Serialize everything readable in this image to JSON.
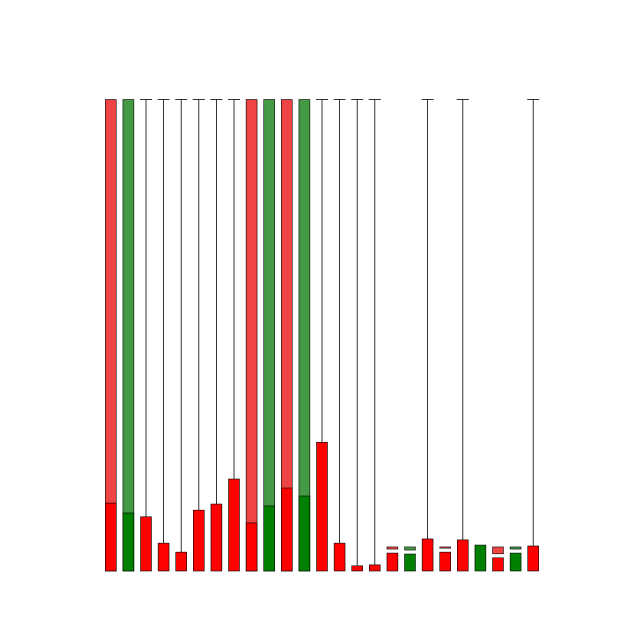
{
  "chart_data": {
    "type": "bar",
    "title": "",
    "xlabel": "",
    "ylabel": "",
    "ylim": [
      0,
      100
    ],
    "grid": false,
    "legend": "none",
    "colors": {
      "red_bar": "#ff0000",
      "green_bar": "#008000",
      "red_stick": "#ee4444",
      "green_stick": "#449944",
      "edge": "#000000"
    },
    "bars": [
      {
        "value": 14.4,
        "color": "red",
        "stick": "red",
        "stick_top": 100
      },
      {
        "value": 12.3,
        "color": "green",
        "stick": "green",
        "stick_top": 100
      },
      {
        "value": 11.5,
        "color": "red",
        "stick": "line",
        "stick_top": 100
      },
      {
        "value": 5.9,
        "color": "red",
        "stick": "line",
        "stick_top": 100
      },
      {
        "value": 4.0,
        "color": "red",
        "stick": "line",
        "stick_top": 100
      },
      {
        "value": 12.9,
        "color": "red",
        "stick": "line",
        "stick_top": 100
      },
      {
        "value": 14.2,
        "color": "red",
        "stick": "line",
        "stick_top": 100
      },
      {
        "value": 19.5,
        "color": "red",
        "stick": "line",
        "stick_top": 100
      },
      {
        "value": 10.2,
        "color": "red",
        "stick": "red",
        "stick_top": 100
      },
      {
        "value": 13.8,
        "color": "green",
        "stick": "green",
        "stick_top": 100
      },
      {
        "value": 17.6,
        "color": "red",
        "stick": "red",
        "stick_top": 100
      },
      {
        "value": 15.9,
        "color": "green",
        "stick": "green",
        "stick_top": 100
      },
      {
        "value": 27.3,
        "color": "red",
        "stick": "line",
        "stick_top": 100
      },
      {
        "value": 5.9,
        "color": "red",
        "stick": "line",
        "stick_top": 100
      },
      {
        "value": 1.1,
        "color": "red",
        "stick": "line",
        "stick_top": 100
      },
      {
        "value": 1.3,
        "color": "red",
        "stick": "line",
        "stick_top": 100
      },
      {
        "value": 3.8,
        "color": "red",
        "stick": "red",
        "stick_top": 5.1
      },
      {
        "value": 3.6,
        "color": "green",
        "stick": "green",
        "stick_top": 5.1
      },
      {
        "value": 6.8,
        "color": "red",
        "stick": "line",
        "stick_top": 100
      },
      {
        "value": 4.0,
        "color": "red",
        "stick": "red",
        "stick_top": 5.1
      },
      {
        "value": 6.6,
        "color": "red",
        "stick": "line",
        "stick_top": 100
      },
      {
        "value": 5.5,
        "color": "green",
        "stick": "green",
        "stick_top": 5.1
      },
      {
        "value": 2.8,
        "color": "red",
        "stick": "red",
        "stick_top": 5.1
      },
      {
        "value": 3.8,
        "color": "green",
        "stick": "green",
        "stick_top": 5.1
      },
      {
        "value": 5.3,
        "color": "red",
        "stick": "line",
        "stick_top": 100
      }
    ]
  }
}
